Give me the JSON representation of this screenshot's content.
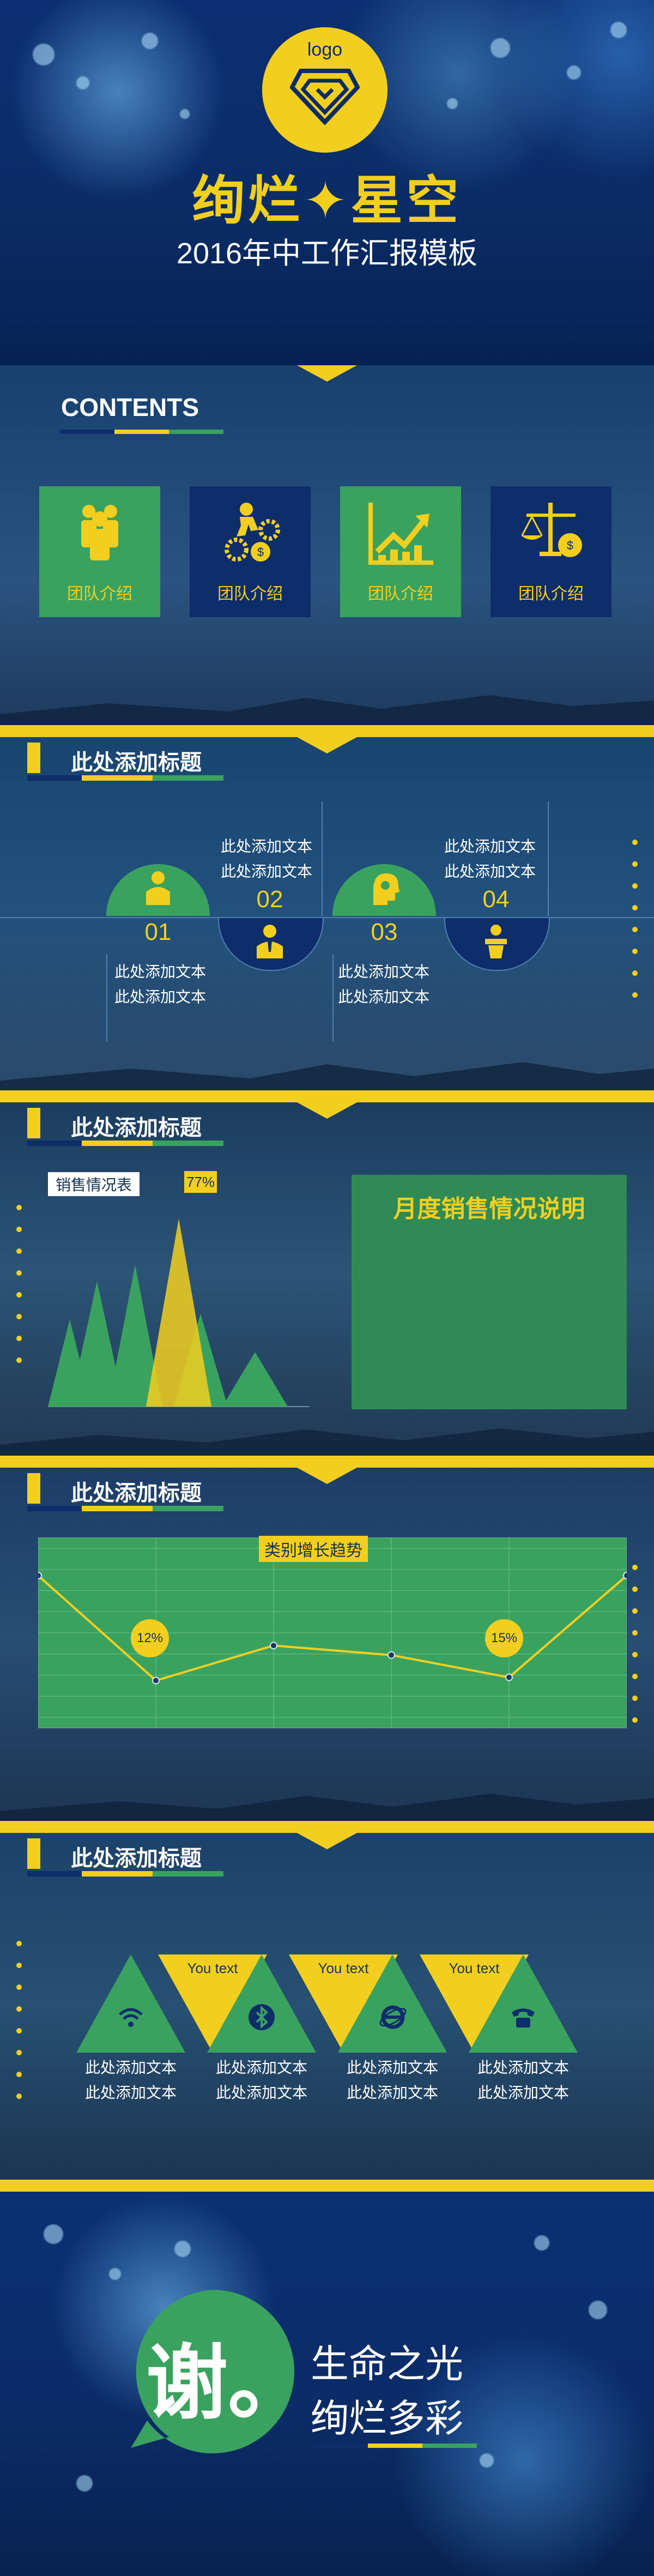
{
  "colors": {
    "yellow": "#f2cf1f",
    "green": "#3aa25f",
    "navy": "#0e2d6b",
    "blue": "#0b2c66"
  },
  "hero": {
    "logo": "logo",
    "title": "绚烂✦星空",
    "subtitle": "2016年中工作汇报模板"
  },
  "contents": {
    "title": "CONTENTS",
    "cards": [
      {
        "label": "团队介绍",
        "icon": "team-icon"
      },
      {
        "label": "团队介绍",
        "icon": "gears-money-icon"
      },
      {
        "label": "团队介绍",
        "icon": "growth-chart-icon"
      },
      {
        "label": "团队介绍",
        "icon": "balance-scale-icon"
      }
    ]
  },
  "section_title": "此处添加标题",
  "timeline": {
    "items": [
      {
        "num": "01",
        "text1": "此处添加文本",
        "text2": "此处添加文本",
        "icon": "person-icon"
      },
      {
        "num": "02",
        "text1": "此处添加文本",
        "text2": "此处添加文本",
        "icon": "businessman-icon"
      },
      {
        "num": "03",
        "text1": "此处添加文本",
        "text2": "此处添加文本",
        "icon": "idea-head-icon"
      },
      {
        "num": "04",
        "text1": "此处添加文本",
        "text2": "此处添加文本",
        "icon": "speaker-podium-icon"
      }
    ]
  },
  "sales": {
    "label": "销售情况表",
    "badge": "77%",
    "box_title": "月度销售情况说明"
  },
  "trend": {
    "title": "类别增长趋势",
    "badge1": "12%",
    "badge2": "15%",
    "chart_data": {
      "type": "line",
      "values": [
        88,
        55,
        66,
        63,
        56,
        88
      ]
    }
  },
  "triangles": {
    "you_text": "You text",
    "icons": [
      "wifi-icon",
      "bluetooth-icon",
      "ie-browser-icon",
      "telephone-icon"
    ],
    "text": "此处添加文本"
  },
  "ending": {
    "thanks": "谢。",
    "line1": "生命之光",
    "line2": "绚烂多彩"
  }
}
